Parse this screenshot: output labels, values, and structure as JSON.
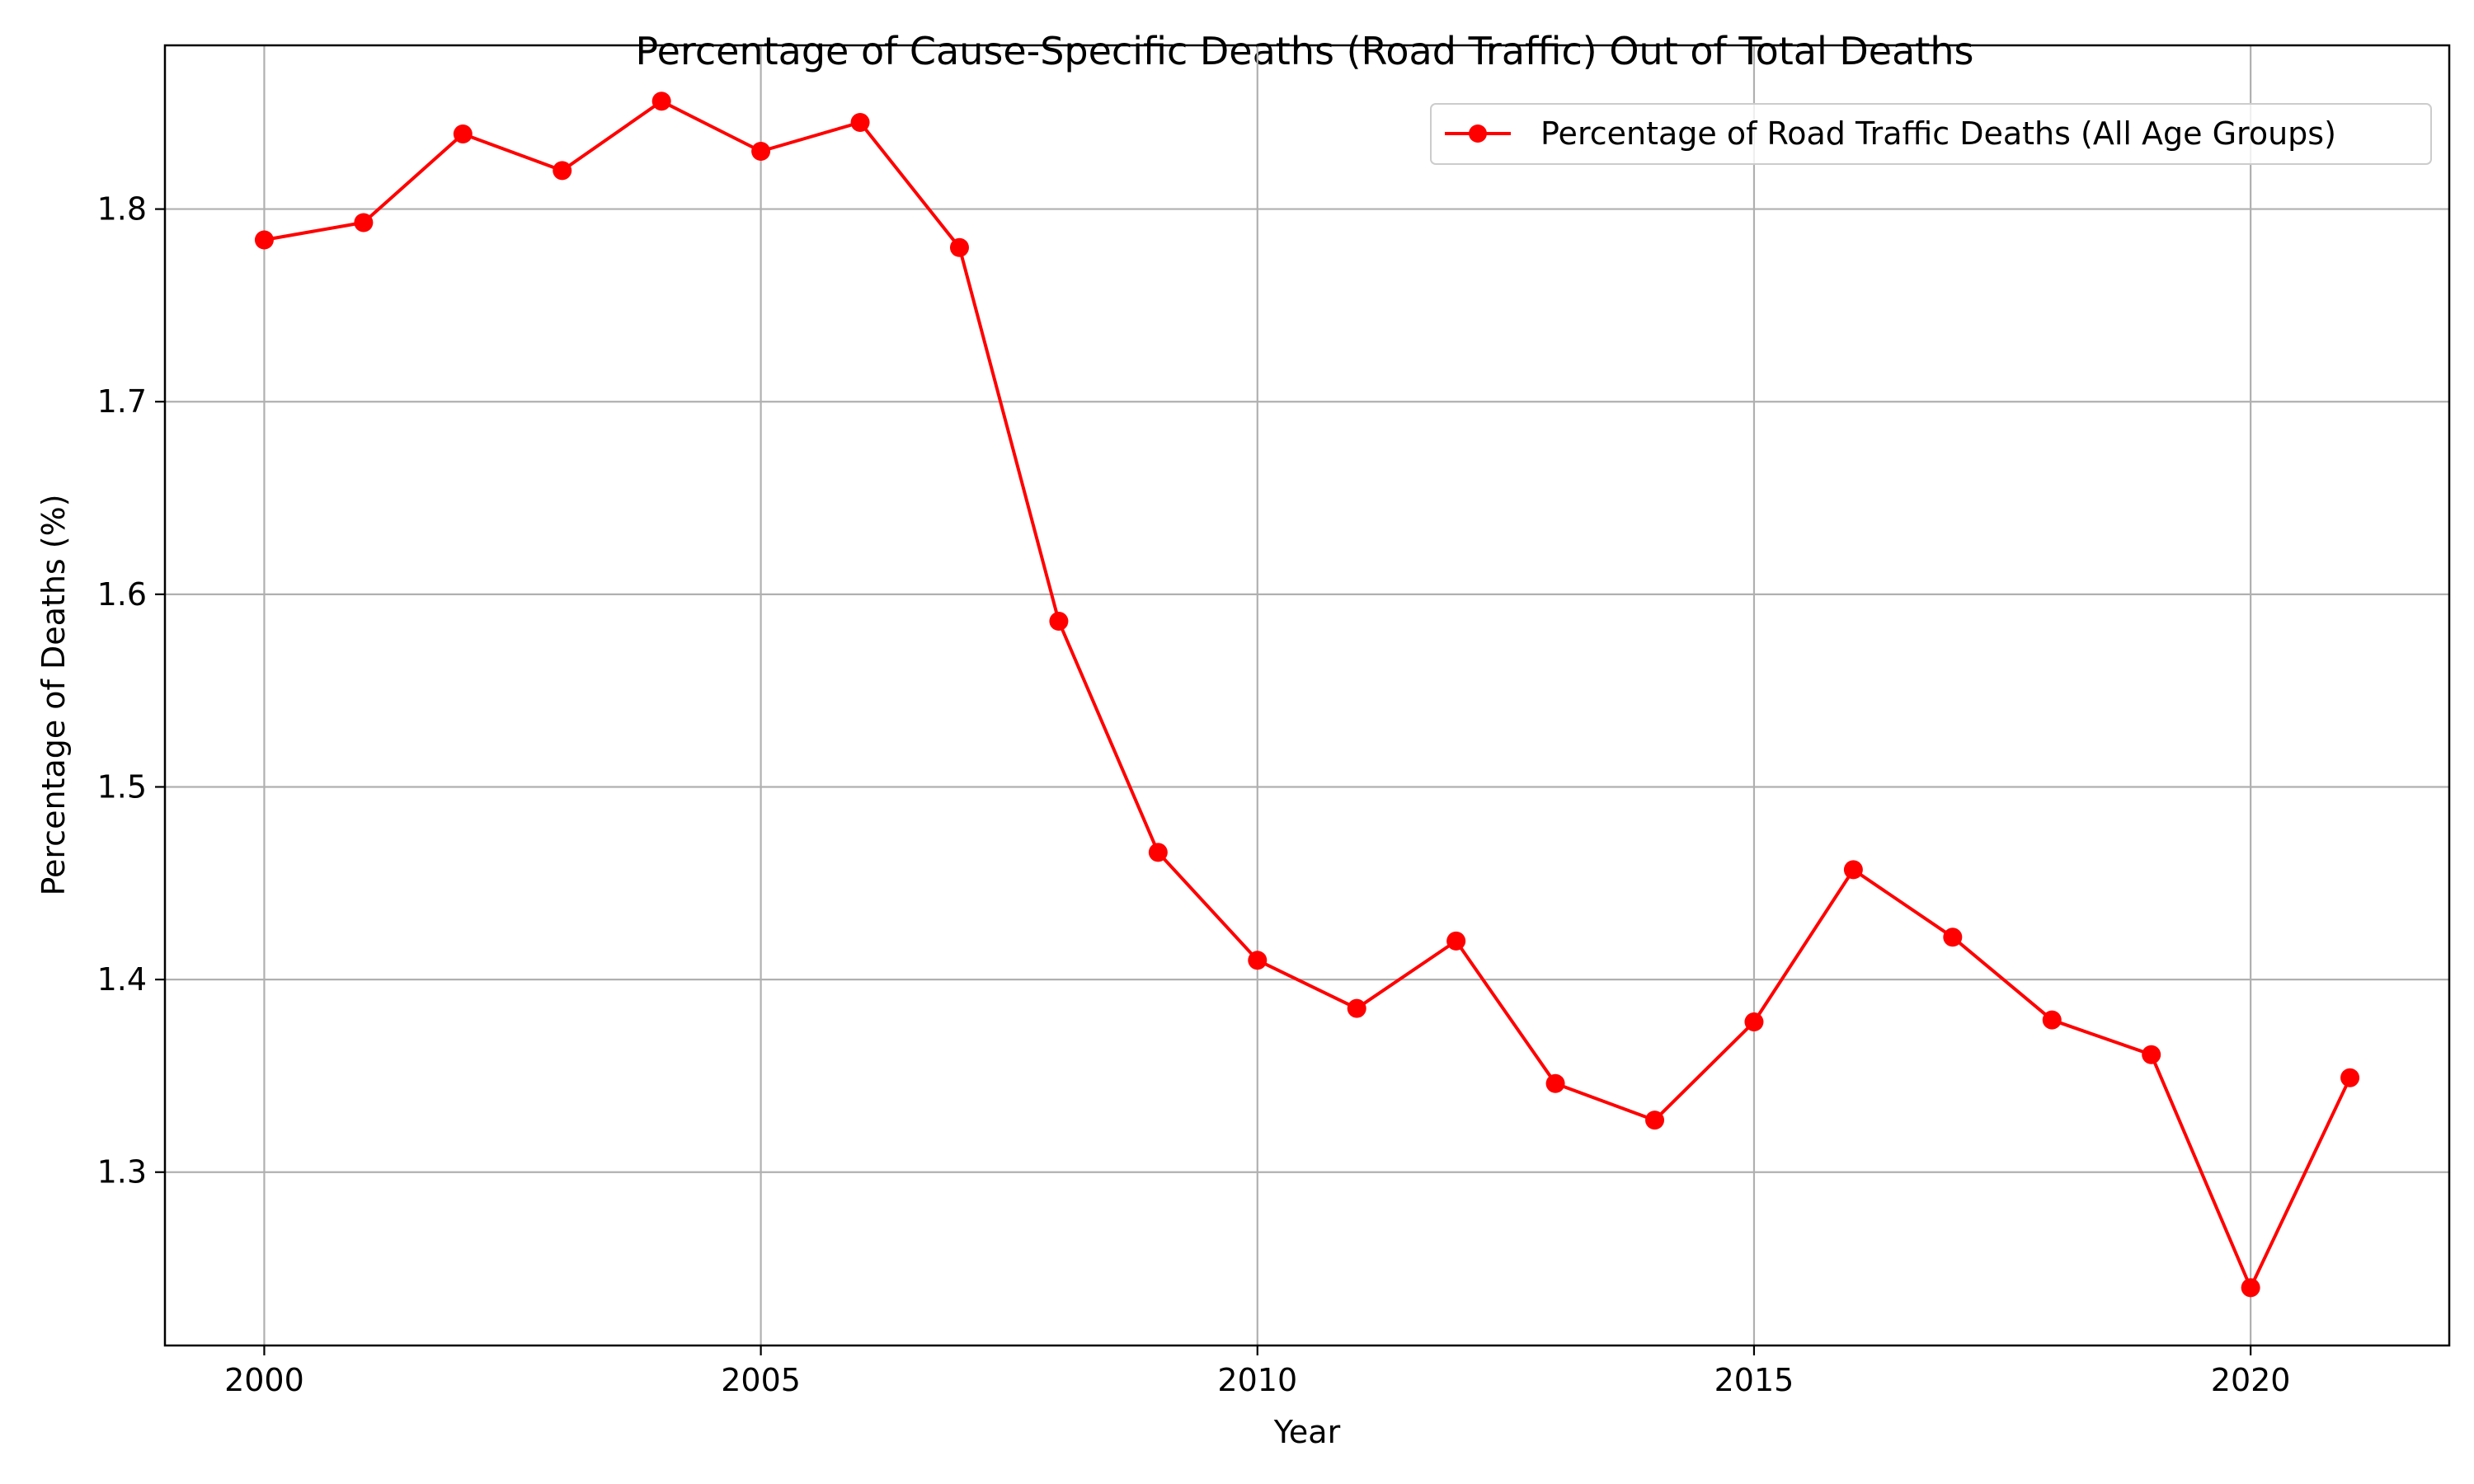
{
  "chart_data": {
    "type": "line",
    "title": "Percentage of Cause-Specific Deaths (Road Traffic) Out of Total Deaths",
    "xlabel": "Year",
    "ylabel": "Percentage of Deaths (%)",
    "xlim": [
      1999,
      2022
    ],
    "ylim": [
      1.21,
      1.885
    ],
    "xticks": [
      2000,
      2005,
      2010,
      2015,
      2020
    ],
    "yticks": [
      1.3,
      1.4,
      1.5,
      1.6,
      1.7,
      1.8
    ],
    "grid": true,
    "legend_position": "top-right",
    "series": [
      {
        "name": "Percentage of Road Traffic Deaths (All Age Groups)",
        "color": "#ff0000",
        "marker": "circle",
        "x": [
          2000,
          2001,
          2002,
          2003,
          2004,
          2005,
          2006,
          2007,
          2008,
          2009,
          2010,
          2011,
          2012,
          2013,
          2014,
          2015,
          2016,
          2017,
          2018,
          2019,
          2020,
          2021
        ],
        "y": [
          1.784,
          1.793,
          1.839,
          1.82,
          1.856,
          1.83,
          1.845,
          1.78,
          1.586,
          1.466,
          1.41,
          1.385,
          1.42,
          1.346,
          1.327,
          1.378,
          1.457,
          1.422,
          1.379,
          1.361,
          1.24,
          1.349
        ]
      }
    ]
  }
}
